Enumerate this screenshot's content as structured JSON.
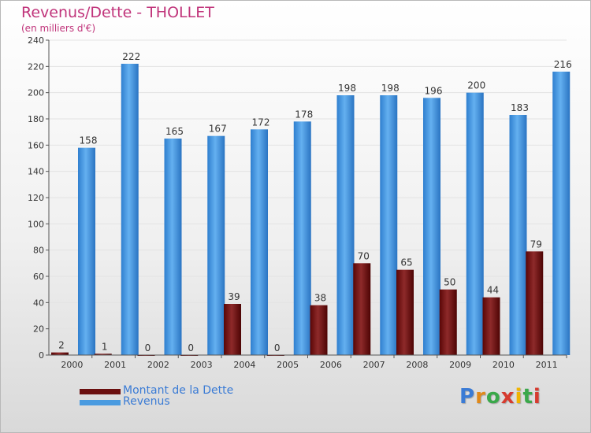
{
  "title": "Revenus/Dette - THOLLET",
  "subtitle": "(en milliers d'€)",
  "logo": "Proxiti",
  "chart_data": {
    "type": "bar",
    "title": "Revenus/Dette - THOLLET",
    "ylabel": "(en milliers d'€)",
    "xlabel": "",
    "ylim": [
      0,
      240
    ],
    "yticks": [
      0,
      20,
      40,
      60,
      80,
      100,
      120,
      140,
      160,
      180,
      200,
      220,
      240
    ],
    "grid": true,
    "legend": "bottom-left",
    "categories": [
      "2000",
      "2001",
      "2002",
      "2003",
      "2004",
      "2005",
      "2006",
      "2007",
      "2008",
      "2009",
      "2010",
      "2011"
    ],
    "series": [
      {
        "name": "Montant de la Dette",
        "color": "#7a1010",
        "values": [
          2,
          1,
          0,
          0,
          39,
          0,
          38,
          70,
          65,
          50,
          44,
          79
        ]
      },
      {
        "name": "Revenus",
        "color": "#4f9fe6",
        "values": [
          158,
          222,
          165,
          167,
          172,
          178,
          198,
          198,
          196,
          200,
          183,
          216
        ]
      }
    ]
  },
  "legend": {
    "items": [
      {
        "label": "Montant de la Dette",
        "color": "#6b0f0f"
      },
      {
        "label": "Revenus",
        "color": "#4a9be0"
      }
    ]
  }
}
